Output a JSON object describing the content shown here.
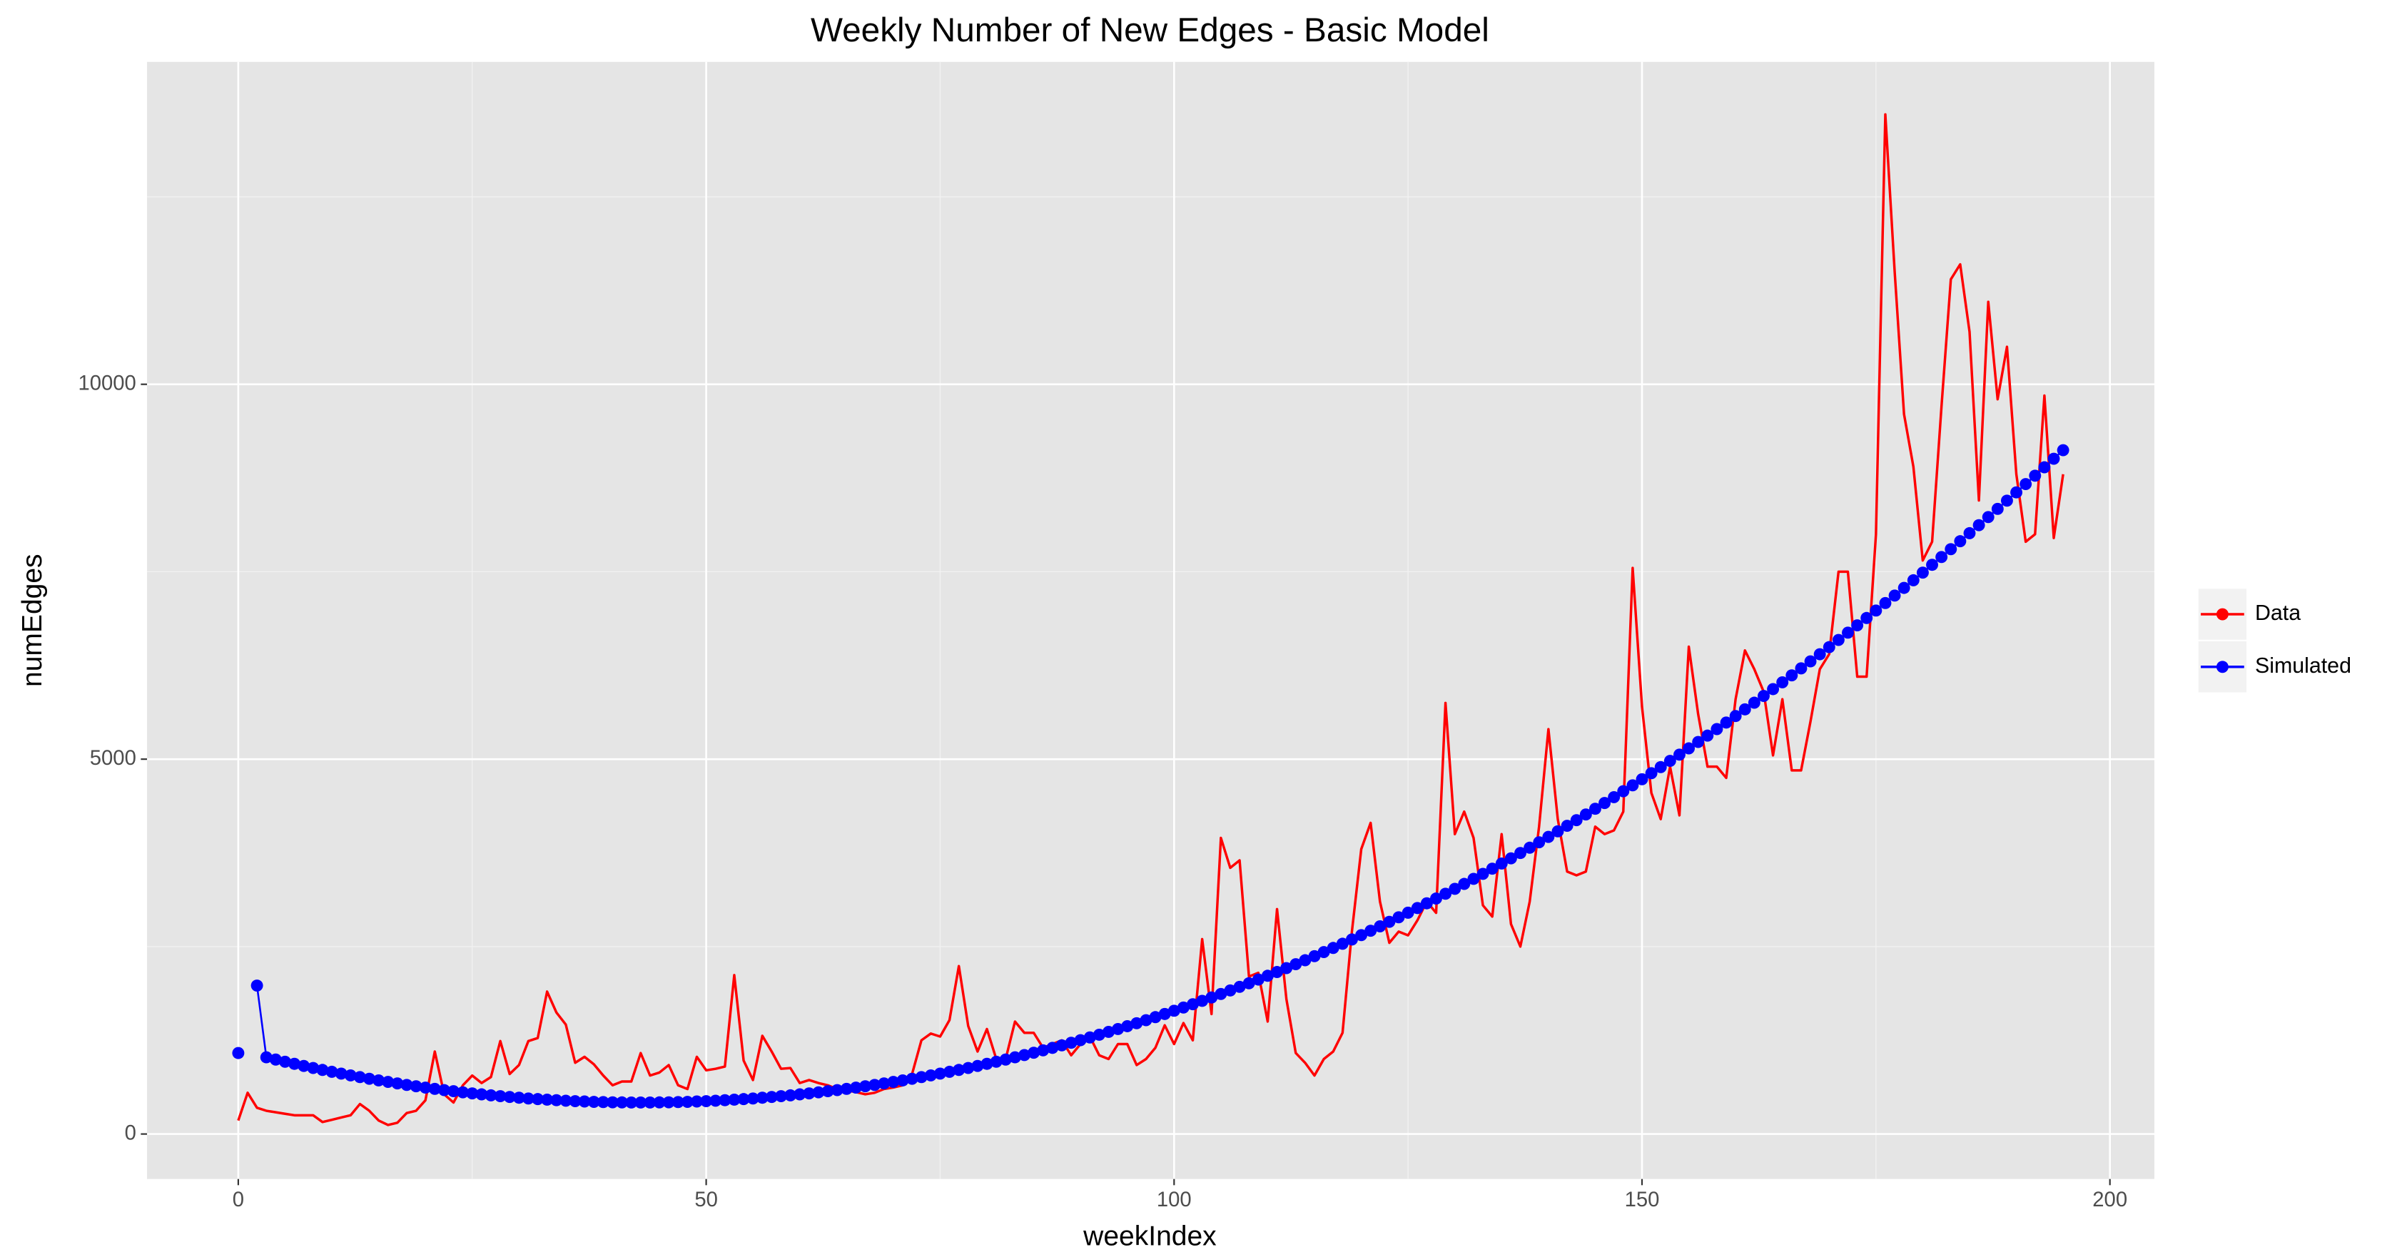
{
  "chart_data": {
    "type": "line",
    "title": "Weekly Number of New Edges - Basic Model",
    "xlabel": "weekIndex",
    "ylabel": "numEdges",
    "xlim": [
      -9.75,
      204.75
    ],
    "ylim": [
      -600,
      14300
    ],
    "xticks": [
      0,
      50,
      100,
      150,
      200
    ],
    "yticks": [
      0,
      5000,
      10000
    ],
    "x_minor_grid": [
      25,
      75,
      125,
      175
    ],
    "y_minor_grid": [
      2500,
      7500,
      12500
    ],
    "grid": true,
    "legend": "right",
    "x": [
      0,
      1,
      2,
      3,
      4,
      5,
      6,
      7,
      8,
      9,
      10,
      11,
      12,
      13,
      14,
      15,
      16,
      17,
      18,
      19,
      20,
      21,
      22,
      23,
      24,
      25,
      26,
      27,
      28,
      29,
      30,
      31,
      32,
      33,
      34,
      35,
      36,
      37,
      38,
      39,
      40,
      41,
      42,
      43,
      44,
      45,
      46,
      47,
      48,
      49,
      50,
      51,
      52,
      53,
      54,
      55,
      56,
      57,
      58,
      59,
      60,
      61,
      62,
      63,
      64,
      65,
      66,
      67,
      68,
      69,
      70,
      71,
      72,
      73,
      74,
      75,
      76,
      77,
      78,
      79,
      80,
      81,
      82,
      83,
      84,
      85,
      86,
      87,
      88,
      89,
      90,
      91,
      92,
      93,
      94,
      95,
      96,
      97,
      98,
      99,
      100,
      101,
      102,
      103,
      104,
      105,
      106,
      107,
      108,
      109,
      110,
      111,
      112,
      113,
      114,
      115,
      116,
      117,
      118,
      119,
      120,
      121,
      122,
      123,
      124,
      125,
      126,
      127,
      128,
      129,
      130,
      131,
      132,
      133,
      134,
      135,
      136,
      137,
      138,
      139,
      140,
      141,
      142,
      143,
      144,
      145,
      146,
      147,
      148,
      149,
      150,
      151,
      152,
      153,
      154,
      155,
      156,
      157,
      158,
      159,
      160,
      161,
      162,
      163,
      164,
      165,
      166,
      167,
      168,
      169,
      170,
      171,
      172,
      173,
      174,
      175,
      176,
      177,
      178,
      179,
      180,
      181,
      182,
      183,
      184,
      185,
      186,
      187,
      188,
      189,
      190,
      191,
      192,
      193,
      194,
      195
    ],
    "series": [
      {
        "name": "Data",
        "color": "#ff0000",
        "type": "line",
        "values": [
          180,
          550,
          350,
          310,
          290,
          270,
          250,
          250,
          250,
          160,
          190,
          220,
          250,
          400,
          310,
          180,
          120,
          150,
          280,
          310,
          450,
          1100,
          530,
          420,
          650,
          780,
          680,
          760,
          1240,
          800,
          920,
          1240,
          1280,
          1900,
          1620,
          1460,
          950,
          1030,
          930,
          780,
          650,
          700,
          700,
          1080,
          780,
          820,
          920,
          650,
          600,
          1030,
          850,
          870,
          900,
          2120,
          980,
          720,
          1310,
          1100,
          870,
          880,
          680,
          720,
          680,
          650,
          600,
          580,
          560,
          530,
          550,
          600,
          620,
          650,
          800,
          1250,
          1340,
          1300,
          1520,
          2240,
          1440,
          1100,
          1400,
          1000,
          1000,
          1500,
          1350,
          1350,
          1150,
          1200,
          1250,
          1050,
          1200,
          1300,
          1050,
          1000,
          1200,
          1200,
          920,
          1000,
          1150,
          1450,
          1200,
          1480,
          1250,
          2600,
          1600,
          3950,
          3550,
          3650,
          2100,
          2150,
          1500,
          3000,
          1800,
          1080,
          950,
          780,
          1000,
          1100,
          1350,
          2700,
          3800,
          4150,
          3100,
          2550,
          2700,
          2650,
          2850,
          3100,
          2950,
          5750,
          4000,
          4300,
          3950,
          3050,
          2900,
          4000,
          2800,
          2500,
          3100,
          4100,
          5400,
          4200,
          3500,
          3450,
          3500,
          4100,
          4000,
          4050,
          4300,
          7550,
          5700,
          4550,
          4200,
          4900,
          4250,
          6500,
          5600,
          4900,
          4900,
          4750,
          5800,
          6450,
          6200,
          5900,
          5050,
          5800,
          4850,
          4850,
          5500,
          6200,
          6400,
          7500,
          7500,
          6100,
          6100,
          8000,
          13600,
          11500,
          9600,
          8900,
          7650,
          7900,
          9700,
          11400,
          11600,
          10700,
          8450,
          11100,
          9800,
          10500,
          8800,
          7900,
          8000,
          9850,
          7950,
          8800
        ]
      },
      {
        "name": "Simulated",
        "color": "#0000ff",
        "type": "scatter",
        "values": [
          1080,
          null,
          1980,
          1023,
          993,
          964,
          936,
          908,
          881,
          855,
          830,
          806,
          782,
          759,
          737,
          715,
          695,
          675,
          655,
          637,
          619,
          602,
          586,
          571,
          556,
          542,
          529,
          516,
          505,
          494,
          484,
          474,
          466,
          458,
          451,
          444,
          438,
          434,
          429,
          426,
          423,
          422,
          420,
          420,
          420,
          422,
          423,
          426,
          429,
          434,
          438,
          444,
          451,
          458,
          466,
          474,
          484,
          494,
          505,
          516,
          529,
          542,
          556,
          571,
          586,
          602,
          619,
          637,
          655,
          675,
          695,
          715,
          737,
          759,
          782,
          806,
          830,
          855,
          881,
          908,
          936,
          964,
          993,
          1023,
          1053,
          1084,
          1116,
          1149,
          1183,
          1217,
          1252,
          1288,
          1324,
          1362,
          1400,
          1438,
          1478,
          1518,
          1559,
          1601,
          1644,
          1687,
          1731,
          1776,
          1821,
          1868,
          1915,
          1963,
          2011,
          2060,
          2111,
          2161,
          2213,
          2265,
          2318,
          2372,
          2427,
          2482,
          2538,
          2595,
          2653,
          2711,
          2770,
          2830,
          2891,
          2952,
          3014,
          3077,
          3141,
          3205,
          3270,
          3336,
          3403,
          3470,
          3539,
          3608,
          3677,
          3748,
          3819,
          3891,
          3963,
          4037,
          4111,
          4186,
          4262,
          4338,
          4415,
          4493,
          4572,
          4651,
          4732,
          4813,
          4894,
          4977,
          5060,
          5144,
          5229,
          5314,
          5401,
          5488,
          5575,
          5664,
          5753,
          5843,
          5934,
          6025,
          6118,
          6211,
          6304,
          6399,
          6494,
          6590,
          6687,
          6785,
          6883,
          6982,
          7082,
          7182,
          7284,
          7386,
          7488,
          7592,
          7696,
          7801,
          7907,
          8014,
          8121,
          8229,
          8338,
          8448,
          8558,
          8669,
          8781,
          8893,
          9007,
          9121
        ]
      }
    ]
  }
}
